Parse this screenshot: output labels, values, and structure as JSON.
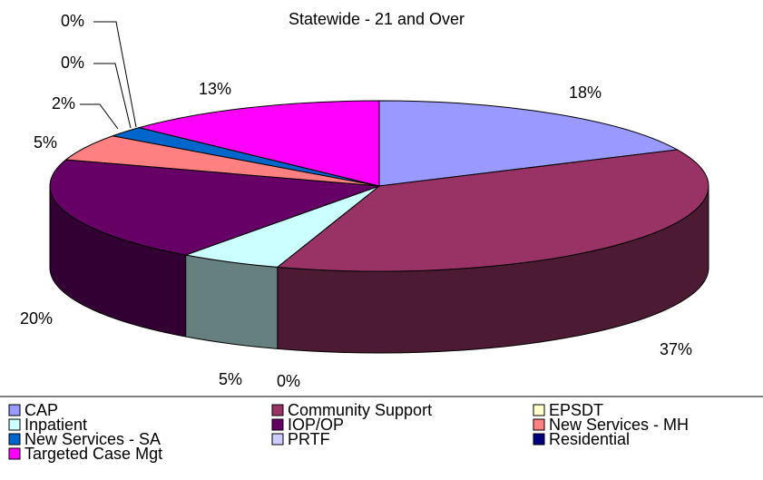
{
  "chart_data": {
    "type": "pie",
    "title": "Statewide - 21 and Over",
    "categories": [
      "CAP",
      "Community Support",
      "EPSDT",
      "Inpatient",
      "IOP/OP",
      "New Services - MH",
      "New Services - SA",
      "PRTF",
      "Residential",
      "Targeted Case Mgt"
    ],
    "values": [
      18,
      37,
      0,
      5,
      20,
      5,
      2,
      0,
      0,
      13
    ],
    "value_labels": [
      "18%",
      "37%",
      "0%",
      "5%",
      "20%",
      "5%",
      "2%",
      "0%",
      "0%",
      "13%"
    ],
    "colors": [
      "#9999ff",
      "#993366",
      "#ffffcc",
      "#ccffff",
      "#660066",
      "#ff8080",
      "#0066cc",
      "#ccccff",
      "#000080",
      "#ff00ff"
    ],
    "legend": "bottom"
  }
}
